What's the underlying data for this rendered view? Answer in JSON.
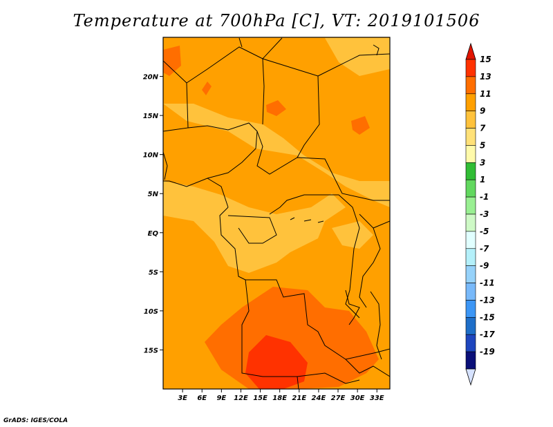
{
  "title": "Temperature at 700hPa [C], VT: 2019101506",
  "credit": "GrADS: IGES/COLA",
  "map": {
    "lon_range": [
      0,
      35
    ],
    "lat_range": [
      -20,
      25
    ],
    "lat_ticks": [
      {
        "label": "20N",
        "value": 20
      },
      {
        "label": "15N",
        "value": 15
      },
      {
        "label": "10N",
        "value": 10
      },
      {
        "label": "5N",
        "value": 5
      },
      {
        "label": "EQ",
        "value": 0
      },
      {
        "label": "5S",
        "value": -5
      },
      {
        "label": "10S",
        "value": -10
      },
      {
        "label": "15S",
        "value": -15
      }
    ],
    "lon_ticks": [
      {
        "label": "3E",
        "value": 3
      },
      {
        "label": "6E",
        "value": 6
      },
      {
        "label": "9E",
        "value": 9
      },
      {
        "label": "12E",
        "value": 12
      },
      {
        "label": "15E",
        "value": 15
      },
      {
        "label": "18E",
        "value": 18
      },
      {
        "label": "21E",
        "value": 21
      },
      {
        "label": "24E",
        "value": 24
      },
      {
        "label": "27E",
        "value": 27
      },
      {
        "label": "30E",
        "value": 30
      },
      {
        "label": "33E",
        "value": 33
      }
    ],
    "background_color": "#ffa000"
  },
  "colorbar": {
    "levels": [
      {
        "label": "15",
        "value": 15
      },
      {
        "label": "13",
        "value": 13
      },
      {
        "label": "11",
        "value": 11
      },
      {
        "label": "9",
        "value": 9
      },
      {
        "label": "7",
        "value": 7
      },
      {
        "label": "5",
        "value": 5
      },
      {
        "label": "3",
        "value": 3
      },
      {
        "label": "1",
        "value": 1
      },
      {
        "label": "-1",
        "value": -1
      },
      {
        "label": "-3",
        "value": -3
      },
      {
        "label": "-5",
        "value": -5
      },
      {
        "label": "-7",
        "value": -7
      },
      {
        "label": "-9",
        "value": -9
      },
      {
        "label": "-11",
        "value": -11
      },
      {
        "label": "-13",
        "value": -13
      },
      {
        "label": "-15",
        "value": -15
      },
      {
        "label": "-17",
        "value": -17
      },
      {
        "label": "-19",
        "value": -19
      }
    ],
    "colors_top_to_bottom": [
      "#e11400",
      "#ff3200",
      "#ff6e00",
      "#ffa000",
      "#ffc23c",
      "#ffe178",
      "#fffaaa",
      "#31bd35",
      "#62d85f",
      "#99ef92",
      "#cef9c6",
      "#e1ffff",
      "#b4f0fa",
      "#96d2fa",
      "#78b9fa",
      "#3c96f5",
      "#1e6ec8",
      "#1e46be",
      "#0a0f78",
      "#d6e2ff"
    ]
  }
}
